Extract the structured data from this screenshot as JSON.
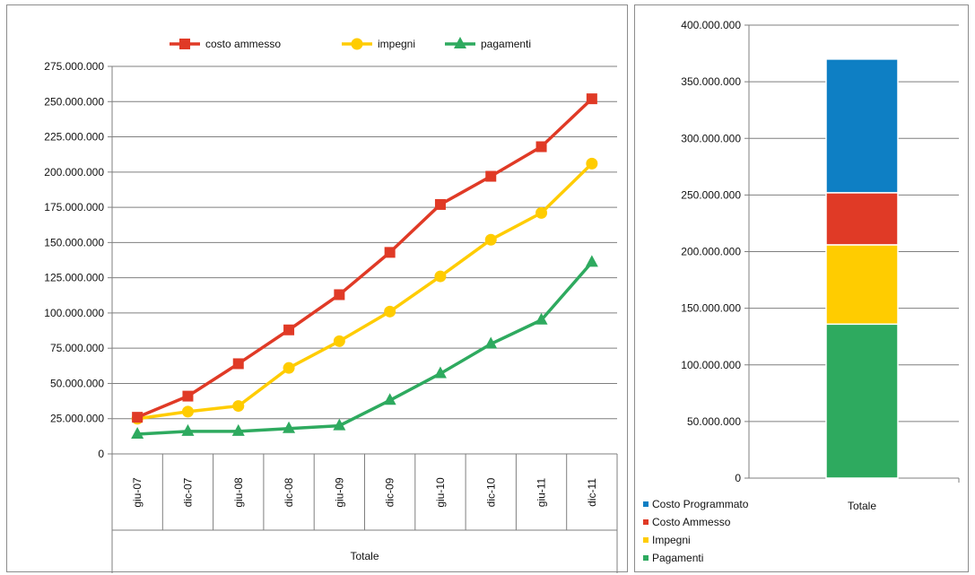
{
  "chart_data": [
    {
      "type": "line",
      "title": "",
      "xlabel": "Totale",
      "ylabel": "",
      "categories": [
        "giu-07",
        "dic-07",
        "giu-08",
        "dic-08",
        "giu-09",
        "dic-09",
        "giu-10",
        "dic-10",
        "giu-11",
        "dic-11"
      ],
      "y_ticks": [
        "0",
        "25.000.000",
        "50.000.000",
        "75.000.000",
        "100.000.000",
        "125.000.000",
        "150.000.000",
        "175.000.000",
        "200.000.000",
        "225.000.000",
        "250.000.000",
        "275.000.000"
      ],
      "ylim": [
        0,
        275000000
      ],
      "grid": true,
      "legend_position": "top",
      "series": [
        {
          "name": "costo ammesso",
          "color": "#e03a26",
          "marker": "square",
          "values": [
            26000000,
            41000000,
            64000000,
            88000000,
            113000000,
            143000000,
            177000000,
            197000000,
            218000000,
            252000000
          ]
        },
        {
          "name": "impegni",
          "color": "#ffcc00",
          "marker": "circle",
          "values": [
            25000000,
            30000000,
            34000000,
            61000000,
            80000000,
            101000000,
            126000000,
            152000000,
            171000000,
            206000000
          ]
        },
        {
          "name": "pagamenti",
          "color": "#2eaa5f",
          "marker": "triangle",
          "values": [
            14000000,
            16000000,
            16000000,
            18000000,
            20000000,
            38000000,
            57000000,
            78000000,
            95000000,
            136000000
          ]
        }
      ]
    },
    {
      "type": "bar",
      "stacked": true,
      "title": "",
      "categories": [
        "Totale"
      ],
      "y_ticks": [
        "0",
        "50.000.000",
        "100.000.000",
        "150.000.000",
        "200.000.000",
        "250.000.000",
        "300.000.000",
        "350.000.000",
        "400.000.000"
      ],
      "ylim": [
        0,
        400000000
      ],
      "grid": true,
      "legend_position": "bottom-left",
      "series": [
        {
          "name": "Pagamenti",
          "color": "#2eaa5f",
          "values": [
            136000000
          ]
        },
        {
          "name": "Impegni",
          "color": "#ffcc00",
          "values": [
            70000000
          ]
        },
        {
          "name": "Costo Ammesso",
          "color": "#e03a26",
          "values": [
            46000000
          ]
        },
        {
          "name": "Costo Programmato",
          "color": "#0e7fc4",
          "values": [
            118000000
          ]
        }
      ],
      "legend_order": [
        "Costo Programmato",
        "Costo Ammesso",
        "Impegni",
        "Pagamenti"
      ]
    }
  ]
}
